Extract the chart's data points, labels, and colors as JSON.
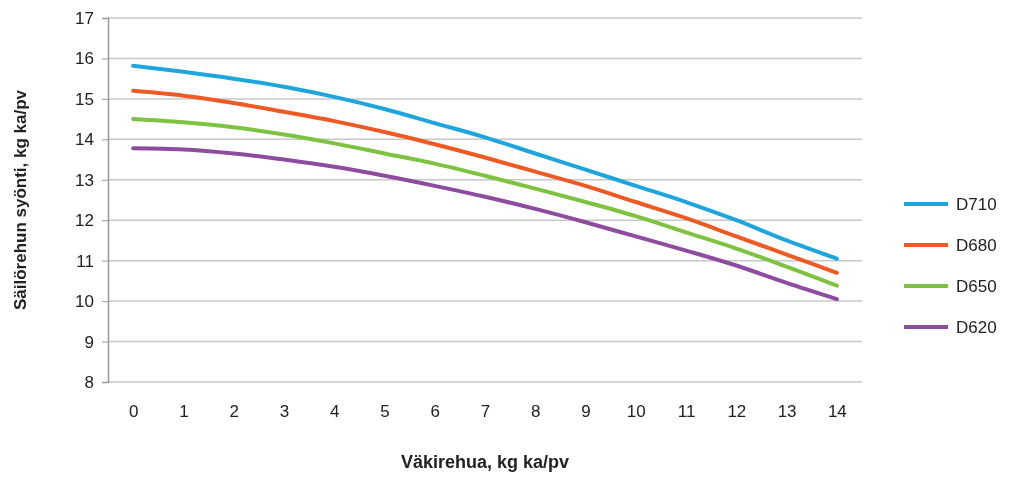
{
  "chart_data": {
    "type": "line",
    "xlabel": "Väkirehua, kg ka/pv",
    "ylabel": "Säilörehun syönti, kg ka/pv",
    "categories": [
      "0",
      "1",
      "2",
      "3",
      "4",
      "5",
      "6",
      "7",
      "8",
      "9",
      "10",
      "11",
      "12",
      "13",
      "14"
    ],
    "series": [
      {
        "name": "D710",
        "color": "#1ea6dc",
        "values": [
          15.82,
          15.67,
          15.5,
          15.3,
          15.05,
          14.75,
          14.4,
          14.05,
          13.65,
          13.25,
          12.85,
          12.45,
          12.0,
          11.5,
          11.05
        ]
      },
      {
        "name": "D680",
        "color": "#ee5a24",
        "values": [
          15.2,
          15.08,
          14.9,
          14.68,
          14.45,
          14.18,
          13.88,
          13.55,
          13.2,
          12.85,
          12.45,
          12.05,
          11.6,
          11.15,
          10.7
        ]
      },
      {
        "name": "D650",
        "color": "#7ec242",
        "values": [
          14.5,
          14.42,
          14.3,
          14.12,
          13.9,
          13.65,
          13.4,
          13.1,
          12.78,
          12.45,
          12.1,
          11.7,
          11.3,
          10.85,
          10.38
        ]
      },
      {
        "name": "D620",
        "color": "#8e4ca0",
        "values": [
          13.78,
          13.75,
          13.65,
          13.5,
          13.32,
          13.1,
          12.85,
          12.58,
          12.28,
          11.95,
          11.6,
          11.25,
          10.88,
          10.45,
          10.05
        ]
      }
    ],
    "ylim": [
      8,
      17
    ],
    "yticks": [
      8,
      9,
      10,
      11,
      12,
      13,
      14,
      15,
      16,
      17
    ],
    "grid": "y",
    "legend": "right",
    "marker": "none",
    "line_style": "solid"
  }
}
